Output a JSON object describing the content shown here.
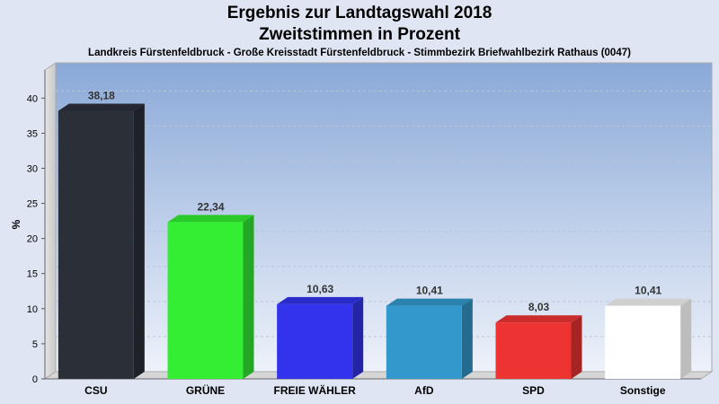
{
  "header": {
    "title_line1": "Ergebnis zur Landtagswahl 2018",
    "title_line2": "Zweitstimmen in Prozent",
    "subtitle": "Landkreis Fürstenfeldbruck - Große Kreisstadt Fürstenfeldbruck - Stimmbezirk Briefwahlbezirk Rathaus (0047)"
  },
  "chart_data": {
    "type": "bar",
    "title": "Ergebnis zur Landtagswahl 2018 Zweitstimmen in Prozent",
    "subtitle": "Landkreis Fürstenfeldbruck - Große Kreisstadt Fürstenfeldbruck - Stimmbezirk Briefwahlbezirk Rathaus (0047)",
    "categories": [
      "CSU",
      "GRÜNE",
      "FREIE WÄHLER",
      "AfD",
      "SPD",
      "Sonstige"
    ],
    "values": [
      38.18,
      22.34,
      10.63,
      10.41,
      8.03,
      10.41
    ],
    "value_labels": [
      "38,18",
      "22,34",
      "10,63",
      "10,41",
      "8,03",
      "10,41"
    ],
    "colors": [
      "#2b2f38",
      "#33ee33",
      "#3333ee",
      "#3399cc",
      "#ee3333",
      "#ffffff"
    ],
    "ylabel": "%",
    "xlabel": "",
    "ylim": [
      0,
      40
    ],
    "yticks": [
      0,
      5,
      10,
      15,
      20,
      25,
      30,
      35,
      40
    ],
    "grid": true,
    "legend": "none"
  }
}
